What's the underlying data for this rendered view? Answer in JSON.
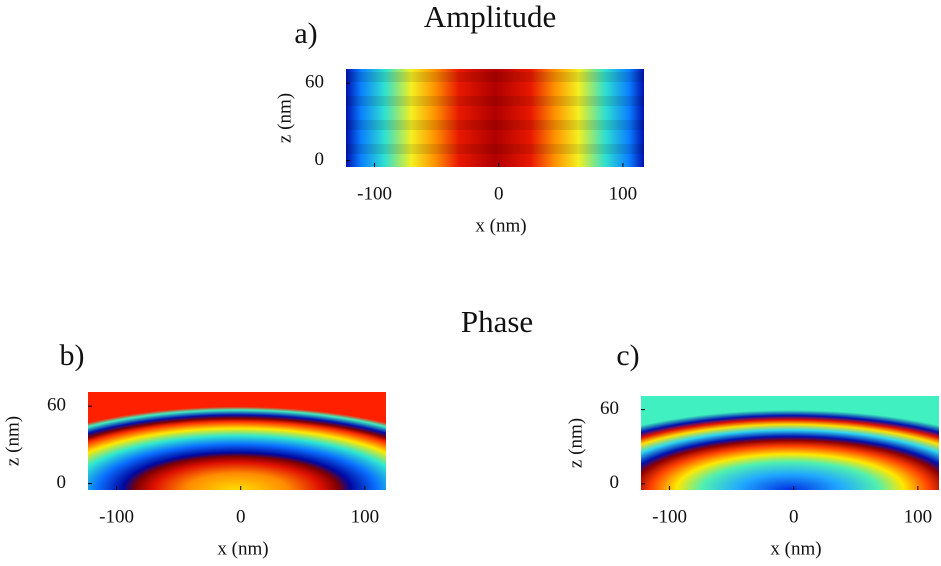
{
  "chart_data": [
    {
      "type": "heatmap",
      "panel_label": "a)",
      "title": "Amplitude",
      "xlabel": "x (nm)",
      "ylabel": "z (nm)",
      "xlim": [
        -123,
        117
      ],
      "ylim": [
        -5,
        71
      ],
      "xticks": [
        -100,
        0,
        100
      ],
      "yticks": [
        0,
        60
      ]
    },
    {
      "type": "heatmap",
      "panel_label": "b)",
      "title": "Phase",
      "xlabel": "x (nm)",
      "ylabel": "z (nm)",
      "xlim": [
        -123,
        117
      ],
      "ylim": [
        -5,
        71
      ],
      "xticks": [
        -100,
        0,
        100
      ],
      "yticks": [
        0,
        60
      ]
    },
    {
      "type": "heatmap",
      "panel_label": "c)",
      "xlabel": "x (nm)",
      "ylabel": "z (nm)",
      "xlim": [
        -123,
        117
      ],
      "ylim": [
        -5,
        71
      ],
      "xticks": [
        -100,
        0,
        100
      ],
      "yticks": [
        0,
        60
      ]
    }
  ]
}
